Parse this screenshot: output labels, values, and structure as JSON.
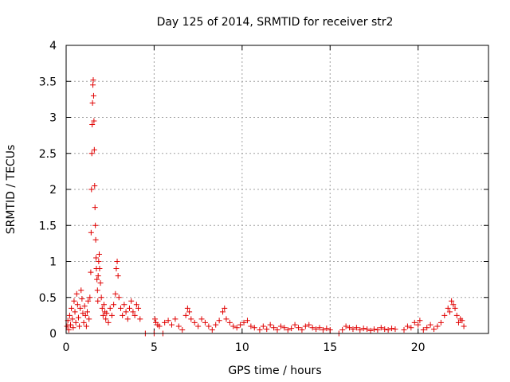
{
  "chart_data": {
    "type": "scatter",
    "title": "Day 125 of 2014, SRMTID for receiver str2",
    "xlabel": "GPS time / hours",
    "ylabel": "SRMTID / TECUs",
    "xlim": [
      0,
      24
    ],
    "ylim": [
      0,
      4
    ],
    "xticks": [
      0,
      5,
      10,
      15,
      20
    ],
    "xtick_labels": [
      "0",
      "5",
      "10",
      "15",
      "20"
    ],
    "yticks": [
      0,
      0.5,
      1,
      1.5,
      2,
      2.5,
      3,
      3.5,
      4
    ],
    "ytick_labels": [
      "0",
      "0.5",
      "1",
      "1.5",
      "2",
      "2.5",
      "3",
      "3.5",
      "4"
    ],
    "grid": true,
    "marker": "+",
    "series": [
      {
        "name": "str2",
        "color": "#e00000",
        "points": [
          [
            0.05,
            0.1
          ],
          [
            0.1,
            0.18
          ],
          [
            0.15,
            0.05
          ],
          [
            0.2,
            0.25
          ],
          [
            0.25,
            0.12
          ],
          [
            0.3,
            0.35
          ],
          [
            0.35,
            0.2
          ],
          [
            0.4,
            0.08
          ],
          [
            0.45,
            0.45
          ],
          [
            0.5,
            0.3
          ],
          [
            0.55,
            0.15
          ],
          [
            0.6,
            0.55
          ],
          [
            0.65,
            0.4
          ],
          [
            0.7,
            0.22
          ],
          [
            0.75,
            0.1
          ],
          [
            0.8,
            0.35
          ],
          [
            0.85,
            0.6
          ],
          [
            0.9,
            0.48
          ],
          [
            0.95,
            0.28
          ],
          [
            1.0,
            0.15
          ],
          [
            1.05,
            0.38
          ],
          [
            1.1,
            0.25
          ],
          [
            1.15,
            0.1
          ],
          [
            1.2,
            0.3
          ],
          [
            1.25,
            0.45
          ],
          [
            1.3,
            0.2
          ],
          [
            1.35,
            0.5
          ],
          [
            1.4,
            0.85
          ],
          [
            1.42,
            1.4
          ],
          [
            1.44,
            2.0
          ],
          [
            1.46,
            2.5
          ],
          [
            1.48,
            2.9
          ],
          [
            1.5,
            3.2
          ],
          [
            1.52,
            3.45
          ],
          [
            1.54,
            3.52
          ],
          [
            1.56,
            3.3
          ],
          [
            1.58,
            2.95
          ],
          [
            1.6,
            2.55
          ],
          [
            1.62,
            2.05
          ],
          [
            1.64,
            1.75
          ],
          [
            1.66,
            1.5
          ],
          [
            1.68,
            1.3
          ],
          [
            1.7,
            1.05
          ],
          [
            1.72,
            0.9
          ],
          [
            1.75,
            0.75
          ],
          [
            1.78,
            0.6
          ],
          [
            1.8,
            0.45
          ],
          [
            1.82,
            0.8
          ],
          [
            1.85,
            1.0
          ],
          [
            1.88,
            1.1
          ],
          [
            1.9,
            0.9
          ],
          [
            1.95,
            0.7
          ],
          [
            2.0,
            0.5
          ],
          [
            2.05,
            0.35
          ],
          [
            2.1,
            0.25
          ],
          [
            2.15,
            0.4
          ],
          [
            2.2,
            0.3
          ],
          [
            2.25,
            0.2
          ],
          [
            2.3,
            0.28
          ],
          [
            2.4,
            0.15
          ],
          [
            2.5,
            0.35
          ],
          [
            2.6,
            0.25
          ],
          [
            2.7,
            0.4
          ],
          [
            2.8,
            0.55
          ],
          [
            2.85,
            0.9
          ],
          [
            2.9,
            1.0
          ],
          [
            2.95,
            0.8
          ],
          [
            3.0,
            0.5
          ],
          [
            3.1,
            0.35
          ],
          [
            3.2,
            0.25
          ],
          [
            3.3,
            0.4
          ],
          [
            3.4,
            0.3
          ],
          [
            3.5,
            0.2
          ],
          [
            3.6,
            0.35
          ],
          [
            3.7,
            0.45
          ],
          [
            3.8,
            0.3
          ],
          [
            3.9,
            0.25
          ],
          [
            4.0,
            0.4
          ],
          [
            4.1,
            0.35
          ],
          [
            4.2,
            0.2
          ],
          [
            4.5,
            0.0
          ],
          [
            5.0,
            0.0
          ],
          [
            5.05,
            0.2
          ],
          [
            5.1,
            0.15
          ],
          [
            5.2,
            0.12
          ],
          [
            5.3,
            0.1
          ],
          [
            5.5,
            0.0
          ],
          [
            5.6,
            0.15
          ],
          [
            5.8,
            0.18
          ],
          [
            6.0,
            0.12
          ],
          [
            6.2,
            0.2
          ],
          [
            6.4,
            0.1
          ],
          [
            6.6,
            0.05
          ],
          [
            6.8,
            0.25
          ],
          [
            6.9,
            0.35
          ],
          [
            7.0,
            0.3
          ],
          [
            7.1,
            0.2
          ],
          [
            7.3,
            0.15
          ],
          [
            7.5,
            0.1
          ],
          [
            7.7,
            0.2
          ],
          [
            7.9,
            0.15
          ],
          [
            8.1,
            0.1
          ],
          [
            8.3,
            0.05
          ],
          [
            8.5,
            0.12
          ],
          [
            8.7,
            0.18
          ],
          [
            8.9,
            0.3
          ],
          [
            9.0,
            0.35
          ],
          [
            9.1,
            0.2
          ],
          [
            9.3,
            0.15
          ],
          [
            9.5,
            0.1
          ],
          [
            9.7,
            0.08
          ],
          [
            9.9,
            0.12
          ],
          [
            10.1,
            0.15
          ],
          [
            10.3,
            0.18
          ],
          [
            10.5,
            0.1
          ],
          [
            10.7,
            0.08
          ],
          [
            11.0,
            0.05
          ],
          [
            11.2,
            0.1
          ],
          [
            11.4,
            0.06
          ],
          [
            11.6,
            0.12
          ],
          [
            11.8,
            0.08
          ],
          [
            12.0,
            0.05
          ],
          [
            12.2,
            0.1
          ],
          [
            12.4,
            0.08
          ],
          [
            12.6,
            0.05
          ],
          [
            12.8,
            0.07
          ],
          [
            13.0,
            0.12
          ],
          [
            13.2,
            0.08
          ],
          [
            13.4,
            0.05
          ],
          [
            13.6,
            0.1
          ],
          [
            13.8,
            0.12
          ],
          [
            14.0,
            0.08
          ],
          [
            14.2,
            0.06
          ],
          [
            14.4,
            0.08
          ],
          [
            14.6,
            0.05
          ],
          [
            14.8,
            0.07
          ],
          [
            15.0,
            0.05
          ],
          [
            15.5,
            0.0
          ],
          [
            15.7,
            0.05
          ],
          [
            15.9,
            0.1
          ],
          [
            16.1,
            0.08
          ],
          [
            16.3,
            0.06
          ],
          [
            16.5,
            0.08
          ],
          [
            16.7,
            0.05
          ],
          [
            16.9,
            0.07
          ],
          [
            17.1,
            0.06
          ],
          [
            17.3,
            0.04
          ],
          [
            17.5,
            0.06
          ],
          [
            17.7,
            0.05
          ],
          [
            17.9,
            0.08
          ],
          [
            18.1,
            0.06
          ],
          [
            18.3,
            0.05
          ],
          [
            18.5,
            0.07
          ],
          [
            18.7,
            0.06
          ],
          [
            19.2,
            0.05
          ],
          [
            19.4,
            0.1
          ],
          [
            19.6,
            0.08
          ],
          [
            19.8,
            0.15
          ],
          [
            20.0,
            0.12
          ],
          [
            20.1,
            0.18
          ],
          [
            20.3,
            0.05
          ],
          [
            20.5,
            0.08
          ],
          [
            20.7,
            0.12
          ],
          [
            20.9,
            0.06
          ],
          [
            21.1,
            0.1
          ],
          [
            21.3,
            0.15
          ],
          [
            21.5,
            0.25
          ],
          [
            21.7,
            0.35
          ],
          [
            21.8,
            0.3
          ],
          [
            21.9,
            0.45
          ],
          [
            22.0,
            0.4
          ],
          [
            22.1,
            0.35
          ],
          [
            22.2,
            0.25
          ],
          [
            22.3,
            0.15
          ],
          [
            22.4,
            0.2
          ],
          [
            22.5,
            0.18
          ],
          [
            22.6,
            0.1
          ]
        ]
      }
    ]
  }
}
